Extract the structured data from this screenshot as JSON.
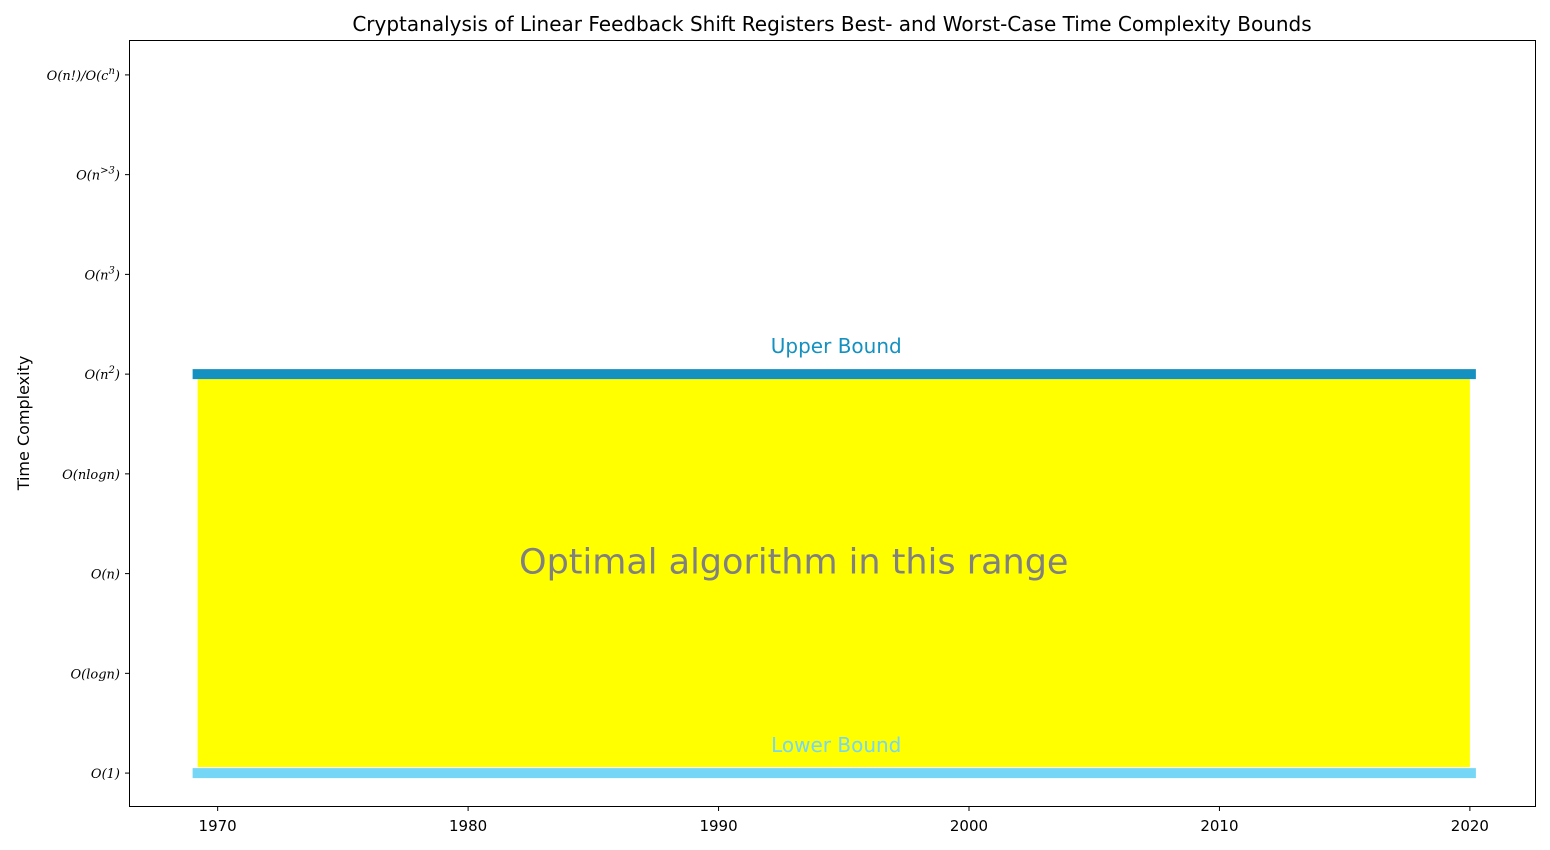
{
  "chart_data": {
    "type": "area",
    "title": "Cryptanalysis of Linear Feedback Shift Registers Best- and Worst-Case Time Complexity Bounds",
    "xlabel": "",
    "ylabel": "Time Complexity",
    "xlim": [
      1966.5,
      2022.6
    ],
    "xticks": [
      1970,
      1980,
      1990,
      2000,
      2010,
      2020
    ],
    "ylim": [
      -0.33,
      7.35
    ],
    "y_levels": [
      {
        "base": "O(1)",
        "sup": ""
      },
      {
        "base": "O(logn)",
        "sup": ""
      },
      {
        "base": "O(n)",
        "sup": ""
      },
      {
        "base": "O(nlogn)",
        "sup": ""
      },
      {
        "base": "O(n",
        "sup": "2",
        "tail": ")"
      },
      {
        "base": "O(n",
        "sup": "3",
        "tail": ")"
      },
      {
        "base": "O(n",
        "sup": ">3",
        "tail": ")"
      },
      {
        "base": "O(n!)/O(c",
        "sup": "n",
        "tail": ")"
      }
    ],
    "series": [
      {
        "name": "Upper Bound",
        "x": [
          1969,
          2020
        ],
        "y": [
          4,
          4
        ],
        "color": "#1491c0"
      },
      {
        "name": "Lower Bound",
        "x": [
          1969,
          2020
        ],
        "y": [
          0,
          0
        ],
        "color": "#75d6f5"
      }
    ],
    "fill_between": {
      "x": [
        1969,
        2020
      ],
      "lower": 0,
      "upper": 4,
      "color": "#ffff00"
    },
    "annotations": {
      "upper_label": "Upper Bound",
      "lower_label": "Lower Bound",
      "center_label": "Optimal algorithm in this range",
      "center_position": [
        1995,
        2.1
      ]
    },
    "grid": false,
    "legend": "none"
  }
}
